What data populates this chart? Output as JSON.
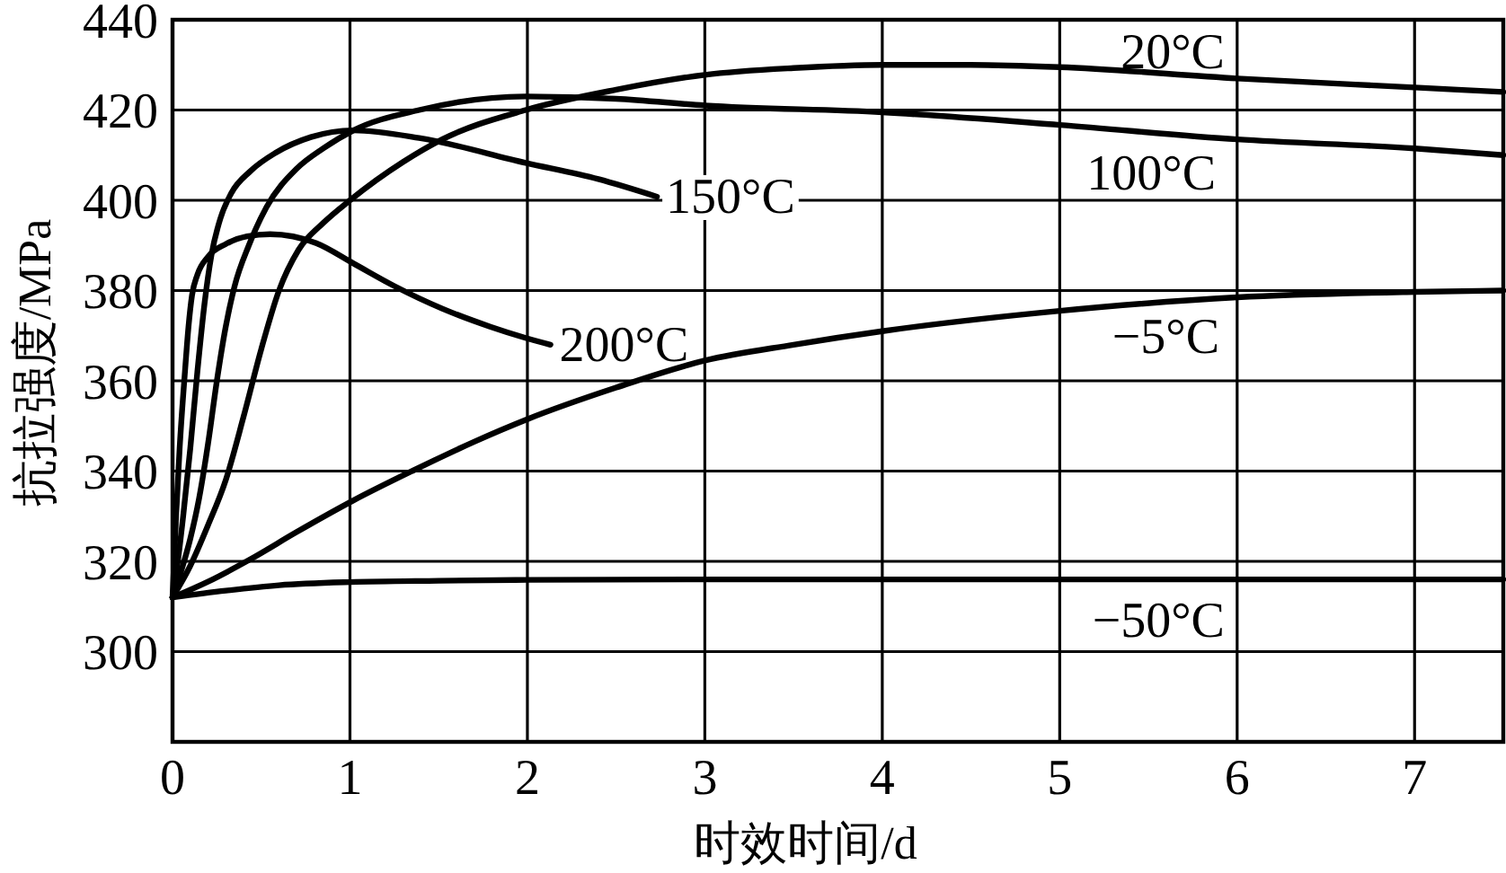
{
  "chart_data": {
    "type": "line",
    "xlabel": "时效时间/d",
    "ylabel": "抗拉强度/MPa",
    "xlim": [
      0,
      7.5
    ],
    "xticks": [
      0,
      1,
      2,
      3,
      4,
      5,
      6,
      7
    ],
    "ylim": [
      280,
      440
    ],
    "yticks": [
      300,
      320,
      340,
      360,
      380,
      400,
      420,
      440
    ],
    "grid": true,
    "series": [
      {
        "name": "20°C",
        "color": "#000000",
        "x": [
          0,
          0.1,
          0.2,
          0.3,
          0.4,
          0.5,
          0.6,
          0.71,
          0.85,
          1.0,
          1.3,
          1.52,
          1.99,
          2.5,
          3,
          3.5,
          4,
          4.5,
          5,
          6,
          7,
          7.5
        ],
        "values": [
          312,
          319,
          328,
          338,
          352,
          367,
          380,
          389,
          395,
          400,
          408.5,
          413.5,
          420,
          424.5,
          427.8,
          429.3,
          430,
          430,
          429.5,
          427,
          425,
          424
        ]
      },
      {
        "name": "100°C",
        "color": "#000000",
        "x": [
          0,
          0.05,
          0.1,
          0.15,
          0.2,
          0.25,
          0.3,
          0.35,
          0.43,
          0.53,
          0.7,
          0.85,
          1.02,
          1.39,
          1.99,
          2.5,
          3,
          4,
          5,
          6,
          7,
          7.5
        ],
        "values": [
          312,
          318,
          325,
          334,
          346,
          360,
          372,
          381,
          390,
          398.5,
          407,
          411.5,
          415.5,
          420,
          423,
          422.5,
          421,
          419.5,
          416.7,
          413.5,
          411.5,
          410
        ]
      },
      {
        "name": "150°C",
        "color": "#000000",
        "x": [
          0,
          0.03,
          0.06,
          0.1,
          0.14,
          0.18,
          0.22,
          0.27,
          0.33,
          0.44,
          0.58,
          0.78,
          1.02,
          1.39,
          1.99,
          2.4,
          2.73
        ],
        "values": [
          312,
          320,
          330,
          345,
          362,
          377,
          388,
          396,
          401.5,
          406.5,
          410.5,
          414,
          415.5,
          413.8,
          408.3,
          404.7,
          400.8
        ]
      },
      {
        "name": "200°C",
        "color": "#000000",
        "x": [
          0,
          0.02,
          0.04,
          0.07,
          0.09,
          0.11,
          0.14,
          0.2,
          0.3,
          0.42,
          0.55,
          0.81,
          1.02,
          1.25,
          1.52,
          1.79,
          1.99,
          2.13
        ],
        "values": [
          312,
          330,
          345,
          362,
          372,
          379,
          383.5,
          387.5,
          390.3,
          392,
          392.5,
          390.5,
          386,
          381,
          376,
          372,
          369.5,
          368
        ]
      },
      {
        "name": "−5°C",
        "color": "#000000",
        "x": [
          0,
          0.2,
          0.44,
          0.7,
          1.02,
          1.35,
          1.7,
          2.0,
          2.5,
          3,
          3.5,
          4,
          5,
          6,
          7,
          7.5
        ],
        "values": [
          312,
          315.5,
          320.5,
          326.5,
          333.5,
          340,
          346.5,
          351.5,
          358.5,
          364.5,
          368,
          371,
          375.5,
          378.5,
          379.7,
          380
        ]
      },
      {
        "name": "−50°C",
        "color": "#000000",
        "x": [
          0,
          0.3,
          0.6,
          1,
          1.5,
          2,
          3,
          4,
          5,
          6,
          7,
          7.5
        ],
        "values": [
          312,
          313.5,
          314.7,
          315.4,
          315.7,
          315.9,
          316,
          316,
          316,
          316,
          316,
          316
        ]
      }
    ]
  }
}
